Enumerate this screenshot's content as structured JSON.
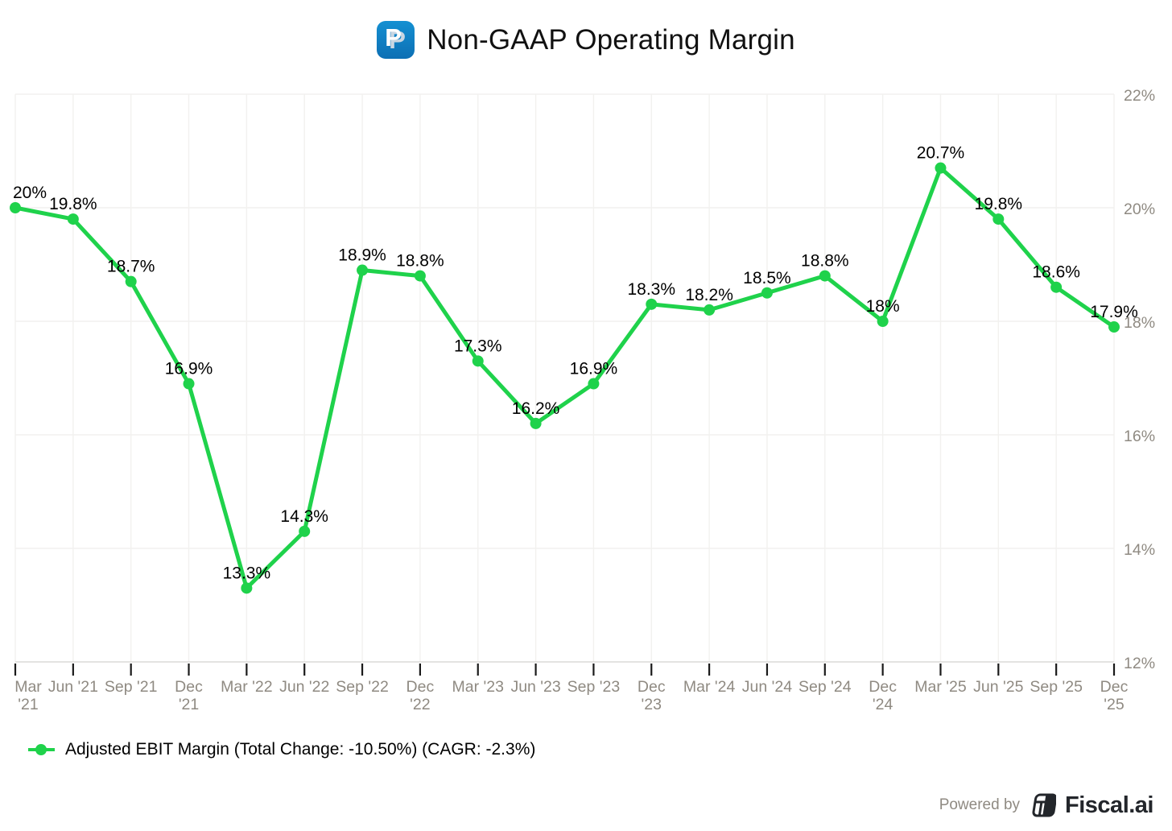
{
  "header": {
    "title": "Non-GAAP Operating Margin",
    "logo": "paypal-logo",
    "logo_letter": "P"
  },
  "chart_data": {
    "type": "line",
    "title": "Non-GAAP Operating Margin",
    "x_categories": [
      "Mar '21",
      "Jun '21",
      "Sep '21",
      "Dec '21",
      "Mar '22",
      "Jun '22",
      "Sep '22",
      "Dec '22",
      "Mar '23",
      "Jun '23",
      "Sep '23",
      "Dec '23",
      "Mar '24",
      "Jun '24",
      "Sep '24",
      "Dec '24",
      "Mar '25",
      "Jun '25",
      "Sep '25",
      "Dec '25"
    ],
    "two_line_tick_indices": [
      0,
      3,
      7,
      11,
      15,
      19
    ],
    "series": [
      {
        "name": "Adjusted EBIT Margin (Total Change: -10.50%) (CAGR: -2.3%)",
        "color": "#1fd24b",
        "values": [
          20,
          19.8,
          18.7,
          16.9,
          13.3,
          14.3,
          18.9,
          18.8,
          17.3,
          16.2,
          16.9,
          18.3,
          18.2,
          18.5,
          18.8,
          18,
          20.7,
          19.8,
          18.6,
          17.9
        ],
        "point_labels": [
          "20%",
          "19.8%",
          "18.7%",
          "16.9%",
          "13.3%",
          "14.3%",
          "18.9%",
          "18.8%",
          "17.3%",
          "16.2%",
          "16.9%",
          "18.3%",
          "18.2%",
          "18.5%",
          "18.8%",
          "18%",
          "20.7%",
          "19.8%",
          "18.6%",
          "17.9%"
        ]
      }
    ],
    "ylim": [
      12,
      22
    ],
    "y_ticks": [
      12,
      14,
      16,
      18,
      20,
      22
    ],
    "y_tick_labels": [
      "12%",
      "14%",
      "16%",
      "18%",
      "20%",
      "22%"
    ],
    "y_axis_side": "right",
    "grid": true,
    "legend_position": "bottom-left"
  },
  "legend": {
    "label": "Adjusted EBIT Margin (Total Change: -10.50%) (CAGR: -2.3%)"
  },
  "footer": {
    "powered_by": "Powered by",
    "brand": "Fiscal.ai"
  },
  "colors": {
    "line": "#1fd24b",
    "grid": "#f2f1ef",
    "axis_line": "#dedcda",
    "tick": "#1a1a1a",
    "tick_label": "#8f8a82",
    "data_label": "#000000",
    "paypal_blue": "#0f7bbf",
    "brand_dark": "#23262b"
  }
}
